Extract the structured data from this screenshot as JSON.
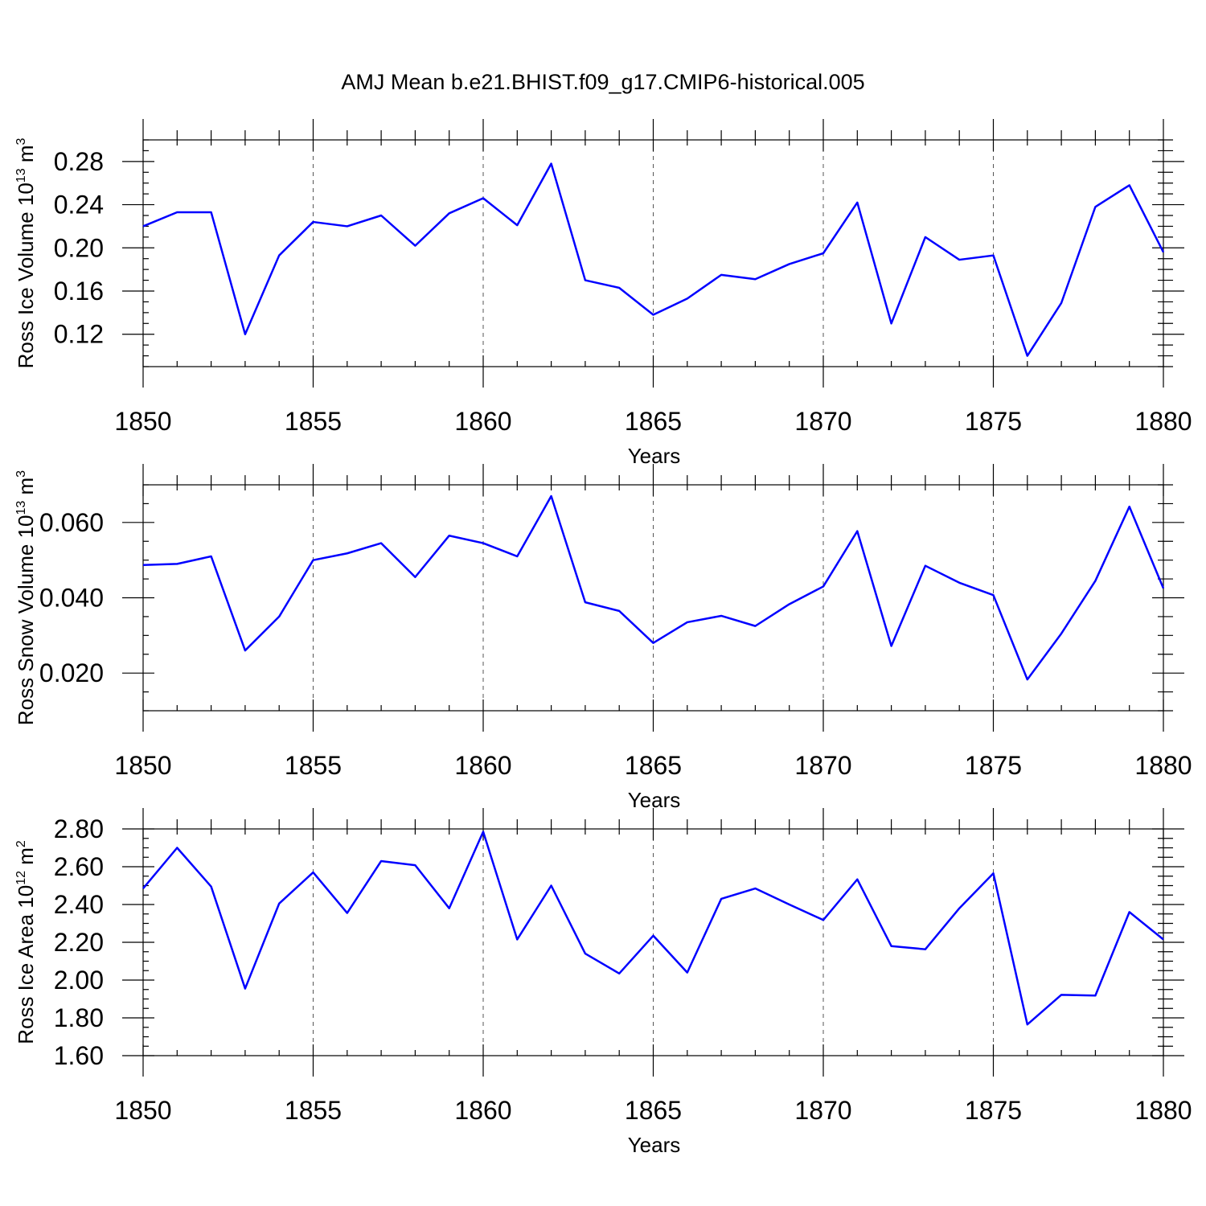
{
  "figure": {
    "title": "AMJ Mean b.e21.BHIST.f09_g17.CMIP6-historical.005"
  },
  "colors": {
    "series": "#0000ff"
  },
  "chart_data": [
    {
      "type": "line",
      "title": "",
      "xlabel": "Years",
      "ylabel": "Ross Ice Volume 10",
      "ylabel_exp": "13",
      "ylabel_unit": " m",
      "ylabel_unit_exp": "3",
      "xlim": [
        1850,
        1880
      ],
      "ylim": [
        0.09,
        0.3
      ],
      "x_ticks": [
        1850,
        1855,
        1860,
        1865,
        1870,
        1875,
        1880
      ],
      "x_tick_labels": [
        "1850",
        "1855",
        "1860",
        "1865",
        "1870",
        "1875",
        "1880"
      ],
      "y_ticks": [
        0.12,
        0.16,
        0.2,
        0.24,
        0.28
      ],
      "y_tick_labels": [
        "0.12",
        "0.16",
        "0.20",
        "0.24",
        "0.28"
      ],
      "y_minor_step": 0.01,
      "grid": "vertical-dashed",
      "x": [
        1850,
        1851,
        1852,
        1853,
        1854,
        1855,
        1856,
        1857,
        1858,
        1859,
        1860,
        1861,
        1862,
        1863,
        1864,
        1865,
        1866,
        1867,
        1868,
        1869,
        1870,
        1871,
        1872,
        1873,
        1874,
        1875,
        1876,
        1877,
        1878,
        1879,
        1880
      ],
      "series": [
        {
          "values": [
            0.22,
            0.233,
            0.233,
            0.12,
            0.193,
            0.224,
            0.22,
            0.23,
            0.202,
            0.232,
            0.246,
            0.221,
            0.278,
            0.17,
            0.163,
            0.138,
            0.153,
            0.175,
            0.171,
            0.185,
            0.195,
            0.242,
            0.13,
            0.21,
            0.189,
            0.193,
            0.1,
            0.149,
            0.238,
            0.258,
            0.196
          ]
        }
      ]
    },
    {
      "type": "line",
      "title": "",
      "xlabel": "Years",
      "ylabel": "Ross Snow Volume 10",
      "ylabel_exp": "13",
      "ylabel_unit": " m",
      "ylabel_unit_exp": "3",
      "xlim": [
        1850,
        1880
      ],
      "ylim": [
        0.01,
        0.07
      ],
      "x_ticks": [
        1850,
        1855,
        1860,
        1865,
        1870,
        1875,
        1880
      ],
      "x_tick_labels": [
        "1850",
        "1855",
        "1860",
        "1865",
        "1870",
        "1875",
        "1880"
      ],
      "y_ticks": [
        0.02,
        0.04,
        0.06
      ],
      "y_tick_labels": [
        "0.020",
        "0.040",
        "0.060"
      ],
      "y_minor_step": 0.005,
      "grid": "vertical-dashed",
      "x": [
        1850,
        1851,
        1852,
        1853,
        1854,
        1855,
        1856,
        1857,
        1858,
        1859,
        1860,
        1861,
        1862,
        1863,
        1864,
        1865,
        1866,
        1867,
        1868,
        1869,
        1870,
        1871,
        1872,
        1873,
        1874,
        1875,
        1876,
        1877,
        1878,
        1879,
        1880
      ],
      "series": [
        {
          "values": [
            0.0487,
            0.049,
            0.051,
            0.026,
            0.035,
            0.05,
            0.0518,
            0.0545,
            0.0455,
            0.0565,
            0.0545,
            0.051,
            0.067,
            0.0388,
            0.0365,
            0.028,
            0.0335,
            0.0352,
            0.0325,
            0.0383,
            0.043,
            0.0577,
            0.0272,
            0.0485,
            0.044,
            0.0407,
            0.0183,
            0.0305,
            0.0445,
            0.0642,
            0.0425
          ]
        }
      ]
    },
    {
      "type": "line",
      "title": "",
      "xlabel": "Years",
      "ylabel": "Ross Ice Area 10",
      "ylabel_exp": "12",
      "ylabel_unit": " m",
      "ylabel_unit_exp": "2",
      "xlim": [
        1850,
        1880
      ],
      "ylim": [
        1.6,
        2.8
      ],
      "x_ticks": [
        1850,
        1855,
        1860,
        1865,
        1870,
        1875,
        1880
      ],
      "x_tick_labels": [
        "1850",
        "1855",
        "1860",
        "1865",
        "1870",
        "1875",
        "1880"
      ],
      "y_ticks": [
        1.6,
        1.8,
        2.0,
        2.2,
        2.4,
        2.6,
        2.8
      ],
      "y_tick_labels": [
        "1.60",
        "1.80",
        "2.00",
        "2.20",
        "2.40",
        "2.60",
        "2.80"
      ],
      "y_minor_step": 0.05,
      "grid": "vertical-dashed",
      "x": [
        1850,
        1851,
        1852,
        1853,
        1854,
        1855,
        1856,
        1857,
        1858,
        1859,
        1860,
        1861,
        1862,
        1863,
        1864,
        1865,
        1866,
        1867,
        1868,
        1869,
        1870,
        1871,
        1872,
        1873,
        1874,
        1875,
        1876,
        1877,
        1878,
        1879,
        1880
      ],
      "series": [
        {
          "values": [
            2.485,
            2.7,
            2.495,
            1.955,
            2.405,
            2.57,
            2.355,
            2.63,
            2.608,
            2.38,
            2.785,
            2.215,
            2.5,
            2.14,
            2.035,
            2.235,
            2.04,
            2.43,
            2.485,
            2.4,
            2.318,
            2.533,
            2.18,
            2.163,
            2.38,
            2.565,
            1.765,
            1.922,
            1.918,
            2.36,
            2.215
          ]
        }
      ]
    }
  ]
}
